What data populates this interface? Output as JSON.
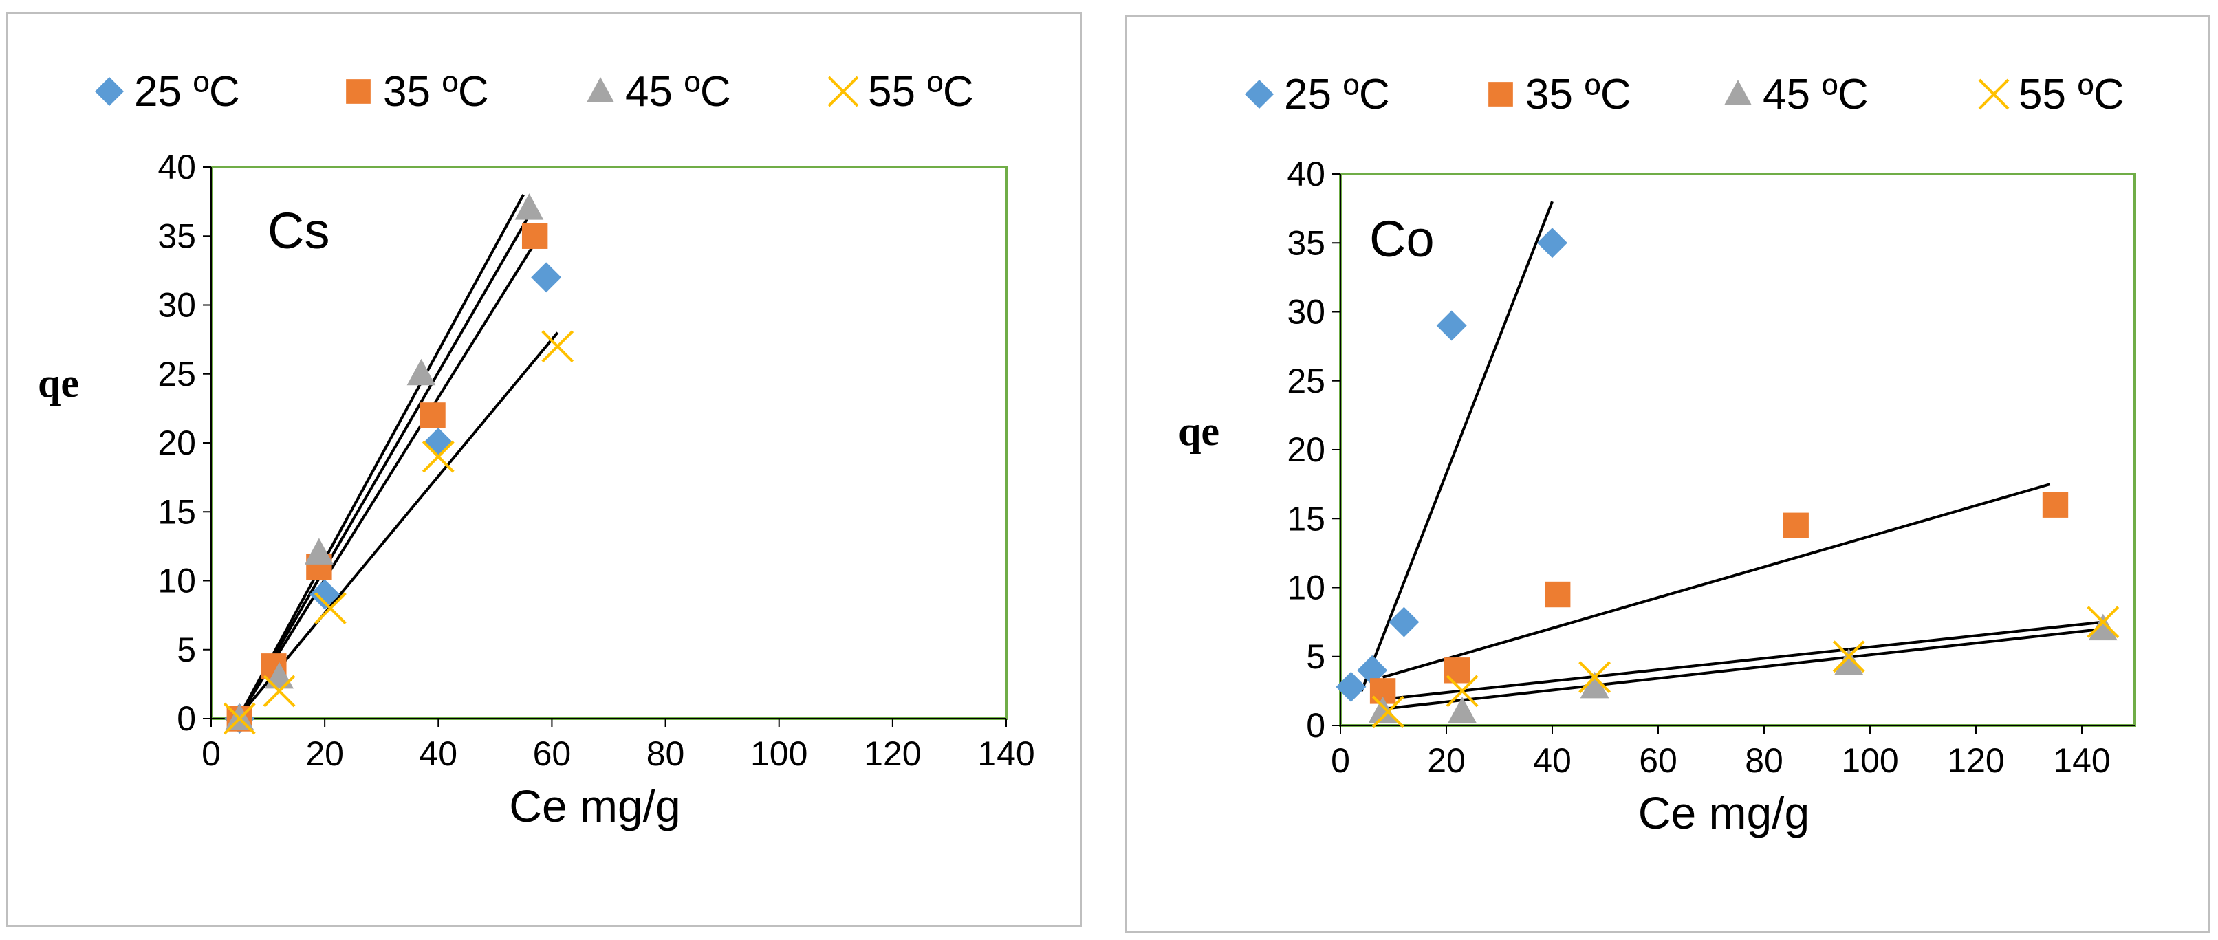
{
  "colors": {
    "s25": "#5b9bd5",
    "s35": "#ed7d31",
    "s45": "#a5a5a5",
    "s55": "#ffc000",
    "frame": "#70ad47",
    "fit": "#000000"
  },
  "chart_data": [
    {
      "type": "scatter",
      "panel_label": "Cs",
      "xlabel": "Ce mg/g",
      "ylabel": "qe",
      "xlim": [
        0,
        140
      ],
      "ylim": [
        0,
        40
      ],
      "x_ticks": [
        "0",
        "20",
        "40",
        "60",
        "80",
        "100",
        "120",
        "140"
      ],
      "y_ticks": [
        "0",
        "5",
        "10",
        "15",
        "20",
        "25",
        "30",
        "35",
        "40"
      ],
      "legend_placement": "top",
      "grid": false,
      "series": [
        {
          "name": "25 ºC",
          "marker": "diamond",
          "color_key": "s25",
          "points": [
            [
              5,
              0
            ],
            [
              20,
              9
            ],
            [
              40,
              20
            ],
            [
              59,
              32
            ]
          ],
          "fit": [
            [
              5,
              0.2
            ],
            [
              57,
              34.5
            ]
          ]
        },
        {
          "name": "35 ºC",
          "marker": "square",
          "color_key": "s35",
          "points": [
            [
              5,
              0
            ],
            [
              11,
              3.8
            ],
            [
              19,
              11
            ],
            [
              39,
              22
            ],
            [
              57,
              35
            ]
          ],
          "fit": [
            [
              5,
              0.2
            ],
            [
              56,
              36.5
            ]
          ]
        },
        {
          "name": "45 ºC",
          "marker": "triangle",
          "color_key": "s45",
          "points": [
            [
              5,
              0
            ],
            [
              12,
              3
            ],
            [
              19,
              12
            ],
            [
              37,
              25
            ],
            [
              56,
              37
            ]
          ],
          "fit": [
            [
              5,
              0.2
            ],
            [
              55,
              38
            ]
          ]
        },
        {
          "name": "55 ºC",
          "marker": "cross",
          "color_key": "s55",
          "points": [
            [
              5,
              0
            ],
            [
              12,
              2
            ],
            [
              21,
              8
            ],
            [
              40,
              19
            ],
            [
              61,
              27
            ]
          ],
          "fit": [
            [
              5,
              0.2
            ],
            [
              61,
              28
            ]
          ]
        }
      ]
    },
    {
      "type": "scatter",
      "panel_label": "Co",
      "xlabel": "Ce mg/g",
      "ylabel": "qe",
      "xlim": [
        0,
        150
      ],
      "ylim": [
        0,
        40
      ],
      "x_ticks": [
        "0",
        "20",
        "40",
        "60",
        "80",
        "100",
        "120",
        "140"
      ],
      "y_ticks": [
        "0",
        "5",
        "10",
        "15",
        "20",
        "25",
        "30",
        "35",
        "40"
      ],
      "legend_placement": "top",
      "grid": false,
      "series": [
        {
          "name": "25 ºC",
          "marker": "diamond",
          "color_key": "s25",
          "points": [
            [
              2,
              2.8
            ],
            [
              6,
              4
            ],
            [
              12,
              7.5
            ],
            [
              21,
              29
            ],
            [
              40,
              35
            ]
          ],
          "fit": [
            [
              4,
              2.5
            ],
            [
              40,
              38
            ]
          ]
        },
        {
          "name": "35 ºC",
          "marker": "square",
          "color_key": "s35",
          "points": [
            [
              8,
              2.5
            ],
            [
              22,
              4
            ],
            [
              41,
              9.5
            ],
            [
              86,
              14.5
            ],
            [
              135,
              16
            ]
          ],
          "fit": [
            [
              8,
              3.5
            ],
            [
              134,
              17.5
            ]
          ]
        },
        {
          "name": "45 ºC",
          "marker": "triangle",
          "color_key": "s45",
          "points": [
            [
              8,
              1
            ],
            [
              23,
              1
            ],
            [
              48,
              2.8
            ],
            [
              96,
              4.5
            ],
            [
              144,
              7
            ]
          ],
          "fit": [
            [
              8,
              1.9
            ],
            [
              144,
              7.5
            ]
          ]
        },
        {
          "name": "55 ºC",
          "marker": "cross",
          "color_key": "s55",
          "points": [
            [
              9,
              1
            ],
            [
              23,
              2.5
            ],
            [
              48,
              3.5
            ],
            [
              96,
              5
            ],
            [
              144,
              7.5
            ]
          ],
          "fit": [
            [
              8,
              1.2
            ],
            [
              144,
              7
            ]
          ]
        }
      ]
    }
  ]
}
